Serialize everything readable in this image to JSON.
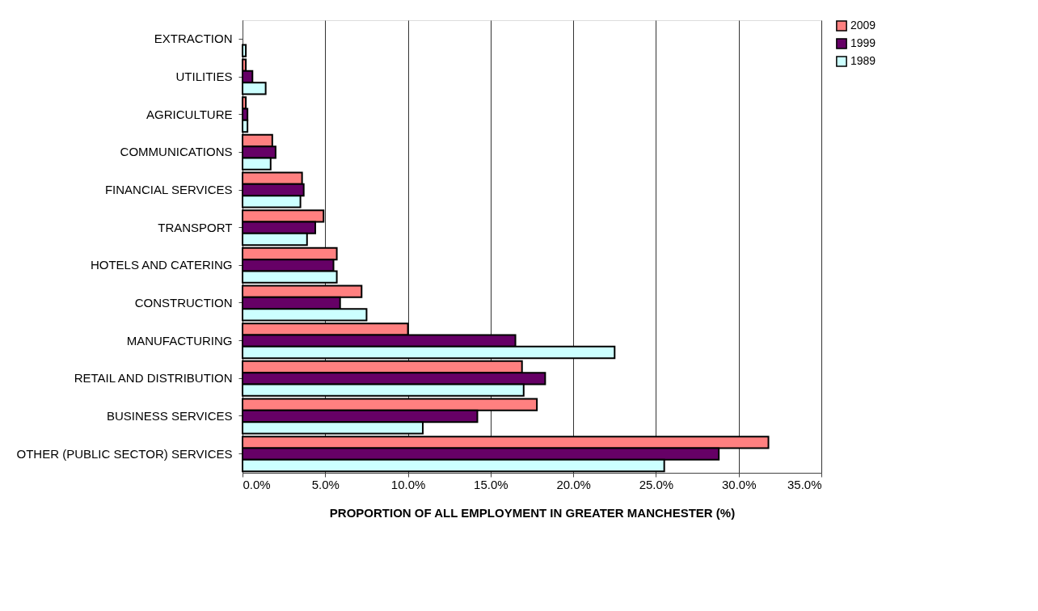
{
  "chart_data": {
    "type": "bar",
    "orientation": "horizontal",
    "categories": [
      "EXTRACTION",
      "UTILITIES",
      "AGRICULTURE",
      "COMMUNICATIONS",
      "FINANCIAL SERVICES",
      "TRANSPORT",
      "HOTELS AND CATERING",
      "CONSTRUCTION",
      "MANUFACTURING",
      "RETAIL AND DISTRIBUTION",
      "BUSINESS SERVICES",
      "OTHER (PUBLIC SECTOR) SERVICES"
    ],
    "series": [
      {
        "name": "2009",
        "color": "#ff8080",
        "values": [
          null,
          0.2,
          0.2,
          1.8,
          3.6,
          4.9,
          5.7,
          7.2,
          10.0,
          16.9,
          17.8,
          31.8
        ]
      },
      {
        "name": "1999",
        "color": "#660066",
        "values": [
          null,
          0.6,
          0.3,
          2.0,
          3.7,
          4.4,
          5.5,
          5.9,
          16.5,
          18.3,
          14.2,
          28.8
        ]
      },
      {
        "name": "1989",
        "color": "#ccffff",
        "values": [
          0.2,
          1.4,
          0.3,
          1.7,
          3.5,
          3.9,
          5.7,
          7.5,
          22.5,
          17.0,
          10.9,
          25.5
        ]
      }
    ],
    "xlabel": "PROPORTION OF ALL EMPLOYMENT IN GREATER MANCHESTER (%)",
    "xlim": [
      0,
      35
    ],
    "xticks": [
      {
        "value": 0,
        "label": "0.0%"
      },
      {
        "value": 5,
        "label": "5.0%"
      },
      {
        "value": 10,
        "label": "10.0%"
      },
      {
        "value": 15,
        "label": "15.0%"
      },
      {
        "value": 20,
        "label": "20.0%"
      },
      {
        "value": 25,
        "label": "25.0%"
      },
      {
        "value": 30,
        "label": "30.0%"
      },
      {
        "value": 35,
        "label": "35.0%"
      }
    ],
    "grid": "x",
    "legend": "right"
  }
}
